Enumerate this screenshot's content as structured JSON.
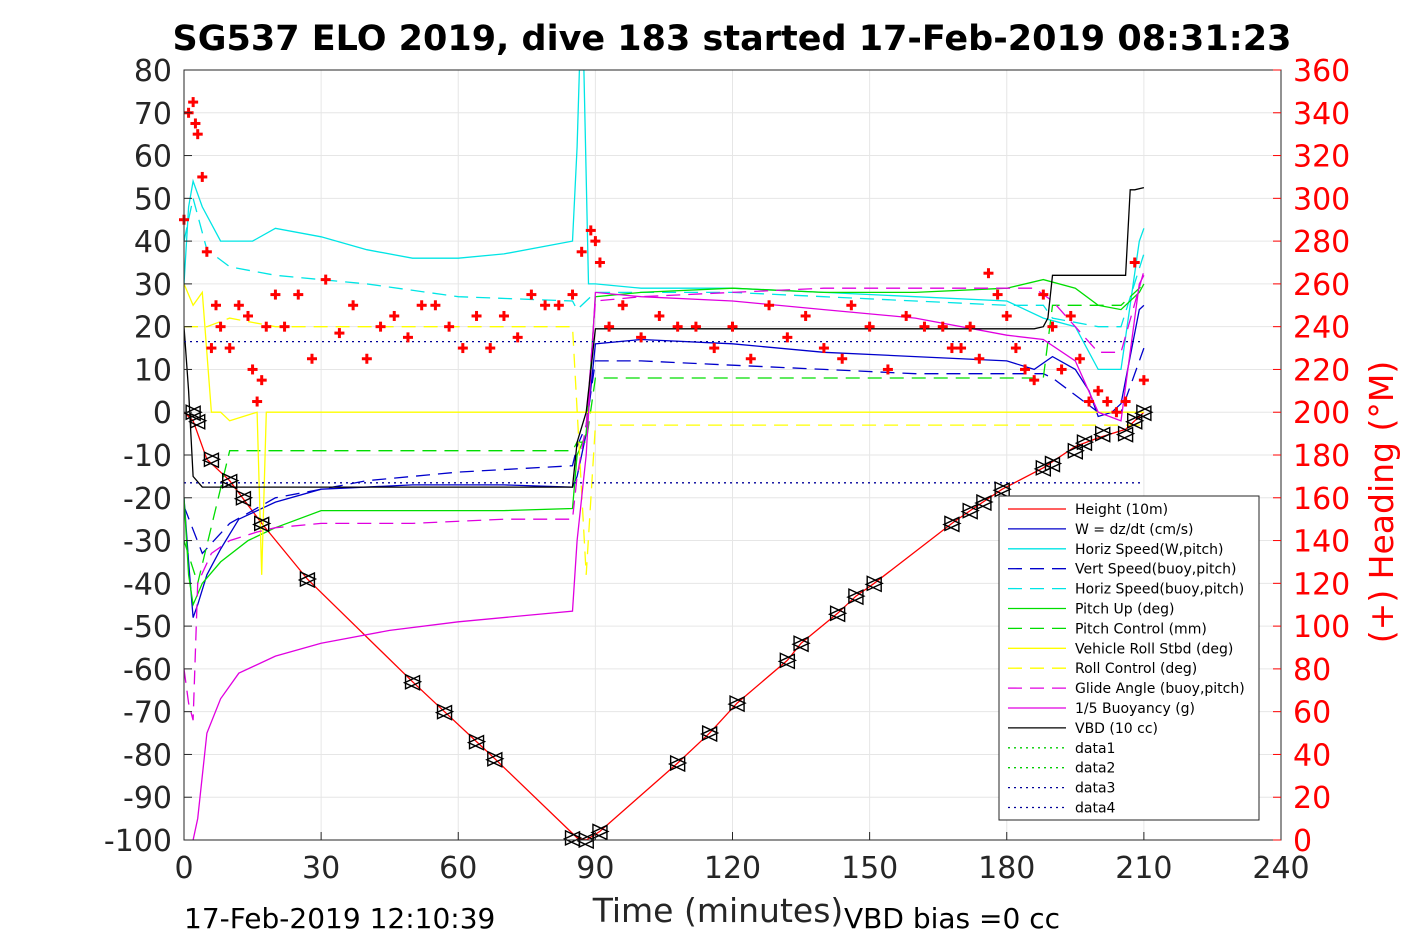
{
  "chart_data": {
    "type": "line",
    "title": "SG537 ELO 2019, dive 183 started 17-Feb-2019 08:31:23",
    "xlabel": "Time (minutes)",
    "ylabel_left": "",
    "ylabel_right": "(+) Heading (°M)",
    "xlim": [
      0,
      240
    ],
    "ylim_left": [
      -100,
      80
    ],
    "ylim_right": [
      0,
      360
    ],
    "x_ticks": [
      "0",
      "30",
      "60",
      "90",
      "120",
      "150",
      "180",
      "210",
      "240"
    ],
    "y_ticks_left": [
      "80",
      "70",
      "60",
      "50",
      "40",
      "30",
      "20",
      "10",
      "0",
      "-10",
      "-20",
      "-30",
      "-40",
      "-50",
      "-60",
      "-70",
      "-80",
      "-90",
      "-100"
    ],
    "y_ticks_right": [
      "360",
      "340",
      "320",
      "300",
      "280",
      "260",
      "240",
      "220",
      "200",
      "180",
      "160",
      "140",
      "120",
      "100",
      "80",
      "60",
      "40",
      "20",
      "0"
    ],
    "grid": true,
    "legend_position": "bottom-right",
    "footer_left": "17-Feb-2019 12:10:39",
    "footer_right": "VBD bias =0 cc",
    "series": [
      {
        "name": "Height (10m)",
        "color": "#ff0000",
        "style": "solid",
        "x": [
          0,
          2,
          5,
          10,
          17,
          27,
          50,
          57,
          64,
          68,
          86,
          88,
          91,
          108,
          115,
          121,
          132,
          135,
          143,
          147,
          151,
          168,
          172,
          179,
          188,
          195,
          200,
          206,
          210
        ],
        "y": [
          0,
          -2,
          -11,
          -16,
          -26,
          -39,
          -63,
          -70,
          -77,
          -81,
          -99.5,
          -100,
          -98,
          -82,
          -75,
          -68,
          -58,
          -54,
          -47,
          -43,
          -40,
          -26,
          -23,
          -18,
          -13,
          -8,
          -6,
          -4,
          0
        ]
      },
      {
        "name": "W = dz/dt (cm/s)",
        "color": "#0000cc",
        "style": "solid",
        "x": [
          0,
          1,
          2,
          3,
          5,
          8,
          12,
          20,
          30,
          50,
          70,
          85,
          86,
          88,
          90,
          100,
          120,
          140,
          160,
          180,
          186,
          190,
          195,
          198,
          200,
          203,
          205,
          209,
          210
        ],
        "y": [
          -20,
          -35,
          -48,
          -45,
          -38,
          -32,
          -25,
          -21,
          -18,
          -17,
          -17,
          -17.5,
          -15,
          -5,
          16,
          17,
          16,
          14,
          13,
          12,
          10,
          13,
          10,
          5,
          -1,
          0,
          2,
          24,
          25
        ]
      },
      {
        "name": "Horiz Speed(W,pitch)",
        "color": "#00e5e5",
        "style": "solid",
        "x": [
          0,
          1,
          2,
          4,
          8,
          15,
          20,
          30,
          40,
          50,
          60,
          70,
          85,
          86,
          86.5,
          87.5,
          88.5,
          90,
          100,
          120,
          140,
          160,
          180,
          188,
          195,
          200,
          205,
          209,
          210
        ],
        "y": [
          30,
          48,
          54,
          48,
          40,
          40,
          43,
          41,
          38,
          36,
          36,
          37,
          40,
          62,
          80,
          80,
          30,
          30,
          29,
          29,
          28,
          27,
          26,
          22,
          20,
          10,
          10,
          40,
          43
        ]
      },
      {
        "name": "Vert Speed(buoy,pitch)",
        "color": "#0000cc",
        "style": "dashed",
        "x": [
          0,
          4,
          10,
          20,
          40,
          60,
          85,
          86,
          88,
          90,
          100,
          120,
          140,
          160,
          180,
          188,
          190,
          200,
          205,
          210
        ],
        "y": [
          -22,
          -33,
          -26,
          -20,
          -16,
          -14,
          -12.5,
          -8,
          -3,
          12,
          12,
          11,
          10,
          9,
          9,
          9,
          8,
          0,
          0,
          15
        ]
      },
      {
        "name": "Horiz Speed(buoy,pitch)",
        "color": "#00e5e5",
        "style": "dashed",
        "x": [
          0,
          2,
          5,
          10,
          20,
          40,
          60,
          85,
          86,
          88,
          90,
          100,
          120,
          140,
          160,
          180,
          188,
          190,
          200,
          205,
          210
        ],
        "y": [
          40,
          50,
          38,
          34,
          32,
          30,
          27,
          26,
          24,
          26,
          28,
          28,
          28,
          27,
          26,
          25,
          25,
          22,
          20,
          20,
          37
        ]
      },
      {
        "name": "Pitch Up (deg)",
        "color": "#00dd00",
        "style": "solid",
        "x": [
          0,
          1,
          2,
          4,
          8,
          14,
          20,
          30,
          50,
          70,
          85,
          86,
          88,
          90,
          100,
          120,
          140,
          160,
          180,
          188,
          195,
          200,
          205,
          209,
          210
        ],
        "y": [
          -20,
          -38,
          -45,
          -40,
          -35,
          -30,
          -27,
          -23,
          -23,
          -23,
          -22.5,
          -10,
          -5,
          27,
          28,
          29,
          28,
          28,
          29,
          31,
          29,
          25,
          24,
          28,
          30
        ]
      },
      {
        "name": "Pitch Control (mm)",
        "color": "#00dd00",
        "style": "dashed",
        "x": [
          0,
          3,
          10,
          20,
          60,
          85,
          86,
          88,
          90,
          100,
          130,
          150,
          170,
          180,
          188,
          190,
          195,
          200,
          205,
          210
        ],
        "y": [
          -30,
          -40,
          -9,
          -9,
          -9,
          -9,
          -7,
          -7,
          8,
          8,
          8,
          8,
          8,
          8,
          8,
          25,
          25,
          25,
          25,
          30
        ]
      },
      {
        "name": "Vehicle Roll Stbd (deg)",
        "color": "#ffff00",
        "style": "solid",
        "x": [
          0,
          2,
          4,
          6,
          8,
          10,
          16,
          17,
          18,
          30,
          60,
          85,
          88,
          90,
          100,
          120,
          140,
          160,
          180,
          190,
          200,
          210
        ],
        "y": [
          30,
          25,
          28,
          0,
          0,
          -2,
          0,
          -38,
          0,
          0,
          0,
          0,
          0,
          0,
          0,
          0,
          0,
          0,
          0,
          0,
          0,
          0
        ]
      },
      {
        "name": "Roll Control (deg)",
        "color": "#ffff00",
        "style": "dashed",
        "x": [
          0,
          5,
          10,
          20,
          40,
          60,
          85,
          88,
          90,
          100,
          120,
          140,
          160,
          180,
          190,
          200,
          210
        ],
        "y": [
          20,
          20,
          22,
          20,
          20,
          20,
          20,
          -38,
          -3,
          -3,
          -3,
          -3,
          -3,
          -3,
          -3,
          -3,
          -3
        ]
      },
      {
        "name": "Glide Angle (buoy,pitch)",
        "color": "#e000e0",
        "style": "dashed",
        "x": [
          0,
          1,
          2,
          3,
          6,
          10,
          16,
          20,
          30,
          50,
          70,
          85,
          86,
          88,
          90,
          100,
          120,
          140,
          160,
          180,
          186,
          190,
          195,
          200,
          205,
          210
        ],
        "y": [
          -60,
          -68,
          -72,
          -40,
          -33,
          -30,
          -28,
          -27,
          -26,
          -26,
          -25,
          -25,
          -15,
          -3,
          26,
          27,
          28,
          29,
          29,
          29,
          29,
          26,
          20,
          14,
          14,
          33
        ]
      },
      {
        "name": "1/5 Buoyancy (g)",
        "color": "#e000e0",
        "style": "solid",
        "x": [
          2,
          3,
          5,
          8,
          12,
          20,
          30,
          45,
          60,
          75,
          85,
          86,
          88,
          90,
          100,
          120,
          140,
          160,
          180,
          188,
          195,
          200,
          205,
          209,
          210
        ],
        "y": [
          -100,
          -95,
          -75,
          -67,
          -61,
          -57,
          -54,
          -51,
          -49,
          -47.5,
          -46.5,
          -30,
          -10,
          28,
          27,
          26,
          24,
          22,
          18,
          17,
          12,
          0,
          -2,
          30,
          32
        ]
      },
      {
        "name": "VBD (10 cc)",
        "color": "#000000",
        "style": "solid",
        "x": [
          0,
          1,
          2,
          4,
          85,
          86,
          88,
          90,
          186,
          188,
          189,
          190,
          206,
          207,
          208,
          210
        ],
        "y": [
          20,
          5,
          -15,
          -17.5,
          -17.5,
          -7,
          0,
          19.5,
          19.5,
          20,
          22,
          32,
          32,
          52,
          52,
          52.5
        ]
      },
      {
        "name": "data1",
        "color": "#00cc00",
        "style": "dotted",
        "x": [],
        "y": []
      },
      {
        "name": "data2",
        "color": "#00cc00",
        "style": "dotted",
        "x": [],
        "y": []
      },
      {
        "name": "data3",
        "color": "#000099",
        "style": "dotted",
        "x": [
          0,
          210
        ],
        "y": [
          16.5,
          16.5
        ]
      },
      {
        "name": "data4",
        "color": "#000099",
        "style": "dotted",
        "x": [
          0,
          210
        ],
        "y": [
          -16.5,
          -16.5
        ]
      }
    ],
    "heading_series": {
      "axis": "right",
      "marker": "+",
      "color": "#ff0000",
      "x": [
        0,
        1,
        2,
        2.5,
        3,
        4,
        5,
        6,
        7,
        8,
        10,
        12,
        14,
        15,
        16,
        17,
        18,
        20,
        22,
        25,
        28,
        31,
        34,
        37,
        40,
        43,
        46,
        49,
        52,
        55,
        58,
        61,
        64,
        67,
        70,
        73,
        76,
        79,
        82,
        85,
        87,
        89,
        90,
        91,
        93,
        96,
        100,
        104,
        108,
        112,
        116,
        120,
        124,
        128,
        132,
        136,
        140,
        144,
        146,
        150,
        154,
        158,
        162,
        166,
        168,
        170,
        172,
        174,
        176,
        178,
        180,
        182,
        184,
        186,
        188,
        190,
        192,
        194,
        196,
        198,
        200,
        202,
        204,
        206,
        208,
        210
      ],
      "y": [
        290,
        340,
        345,
        335,
        330,
        310,
        275,
        230,
        250,
        240,
        230,
        250,
        245,
        220,
        205,
        215,
        240,
        255,
        240,
        255,
        225,
        262,
        237,
        250,
        225,
        240,
        245,
        235,
        250,
        250,
        240,
        230,
        245,
        230,
        245,
        235,
        255,
        250,
        250,
        255,
        275,
        285,
        280,
        270,
        240,
        250,
        235,
        245,
        240,
        240,
        230,
        240,
        225,
        250,
        235,
        245,
        230,
        225,
        250,
        240,
        220,
        245,
        240,
        240,
        230,
        230,
        240,
        225,
        265,
        255,
        245,
        230,
        220,
        215,
        255,
        240,
        220,
        245,
        225,
        205,
        210,
        205,
        200,
        205,
        270,
        215
      ]
    },
    "tacks": {
      "marker": "triangle",
      "color": "#000000",
      "x": [
        2,
        3,
        6,
        10,
        13,
        17,
        27,
        50,
        57,
        64,
        68,
        85,
        88,
        91,
        108,
        115,
        121,
        132,
        135,
        143,
        147,
        151,
        168,
        172,
        175,
        179,
        188,
        190,
        195,
        197,
        201,
        206,
        208,
        210
      ],
      "y": [
        0,
        -2,
        -11,
        -16,
        -20,
        -26,
        -39,
        -63,
        -70,
        -77,
        -81,
        -99.5,
        -100,
        -98,
        -82,
        -75,
        -68,
        -58,
        -54,
        -47,
        -43,
        -40,
        -26,
        -23,
        -21,
        -18,
        -13,
        -12,
        -9,
        -7,
        -5,
        -5,
        -2,
        0
      ]
    }
  }
}
